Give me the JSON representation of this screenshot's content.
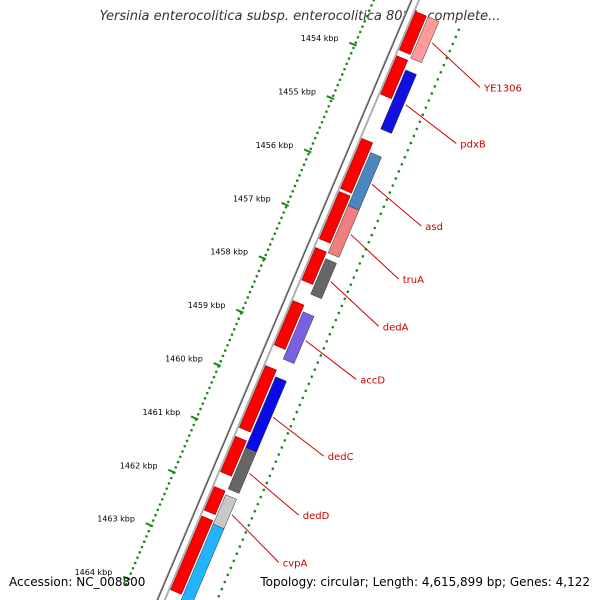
{
  "title": "Yersinia enterocolitica subsp. enterocolitica 8081, complete...",
  "footer": {
    "accession": "Accession: NC_008800",
    "summary": "Topology: circular; Length: 4,615,899 bp; Genes: 4,122"
  },
  "ticks": [
    "1454 kbp",
    "1455 kbp",
    "1456 kbp",
    "1457 kbp",
    "1458 kbp",
    "1459 kbp",
    "1460 kbp",
    "1461 kbp",
    "1462 kbp",
    "1463 kbp",
    "1464 kbp"
  ],
  "colors": {
    "forward_cds": "#ff0000",
    "backbone": "#b0b0b0",
    "gc_skew": "#1a8a1a",
    "label": "#cc0000"
  },
  "genes": [
    {
      "name": "YE1306",
      "color": "#ff9a9a"
    },
    {
      "name": "pdxB",
      "color": "#1010e0"
    },
    {
      "name": "asd",
      "color": "#4a86c0"
    },
    {
      "name": "truA",
      "color": "#f08080"
    },
    {
      "name": "dedA",
      "color": "#666666"
    },
    {
      "name": "accD",
      "color": "#7a60e0"
    },
    {
      "name": "dedC",
      "color": "#0a0ae8"
    },
    {
      "name": "dedD",
      "color": "#666666"
    },
    {
      "name": "cvpA",
      "color": "#c8c8c8"
    },
    {
      "name": "",
      "color": "#22b4ff"
    }
  ]
}
